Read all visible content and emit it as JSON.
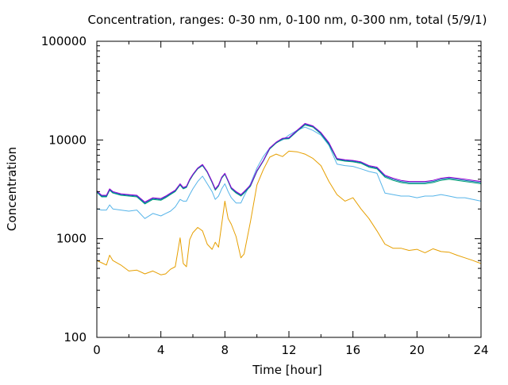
{
  "chart_data": {
    "type": "line",
    "title": "Concentration, ranges: 0-30 nm, 0-100 nm, 0-300 nm, total (5/9/1)",
    "xlabel": "Time [hour]",
    "ylabel": "Concentration",
    "xlim": [
      0,
      24
    ],
    "ylim": [
      100,
      100000
    ],
    "yscale": "log",
    "grid": false,
    "legend": "none",
    "x_ticks": [
      0,
      4,
      8,
      12,
      16,
      20,
      24
    ],
    "x_tick_labels": [
      "0",
      "4",
      "8",
      "12",
      "16",
      "20",
      "24"
    ],
    "y_ticks": [
      100,
      1000,
      10000,
      100000
    ],
    "y_tick_labels": [
      "100",
      "1000",
      "10000",
      "100000"
    ],
    "series": [
      {
        "color": "#e69f00",
        "x": [
          0,
          0.3,
          0.6,
          0.8,
          1.0,
          1.5,
          2.0,
          2.5,
          3.0,
          3.5,
          4.0,
          4.3,
          4.6,
          4.9,
          5.2,
          5.4,
          5.6,
          5.8,
          6.0,
          6.3,
          6.6,
          6.9,
          7.2,
          7.4,
          7.6,
          7.8,
          8.0,
          8.2,
          8.4,
          8.7,
          9.0,
          9.2,
          9.6,
          10.0,
          10.4,
          10.8,
          11.2,
          11.6,
          12.0,
          12.5,
          13.0,
          13.5,
          14.0,
          14.5,
          15.0,
          15.5,
          16.0,
          16.5,
          17.0,
          17.5,
          18.0,
          18.5,
          19.0,
          19.5,
          20.0,
          20.5,
          21.0,
          21.5,
          22.0,
          22.5,
          23.0,
          23.5,
          24.0
        ],
        "values": [
          600,
          570,
          540,
          680,
          600,
          540,
          470,
          480,
          440,
          470,
          430,
          440,
          490,
          520,
          1020,
          560,
          520,
          980,
          1150,
          1300,
          1200,
          880,
          780,
          920,
          820,
          1400,
          2400,
          1600,
          1400,
          1050,
          640,
          700,
          1500,
          3500,
          5000,
          6700,
          7200,
          6800,
          7700,
          7600,
          7200,
          6500,
          5500,
          3800,
          2800,
          2400,
          2600,
          2000,
          1600,
          1200,
          880,
          800,
          800,
          760,
          780,
          720,
          790,
          740,
          730,
          680,
          640,
          600,
          560
        ]
      },
      {
        "color": "#56b4e9",
        "x": [
          0,
          0.3,
          0.6,
          0.8,
          1.0,
          1.5,
          2.0,
          2.5,
          3.0,
          3.5,
          4.0,
          4.3,
          4.6,
          4.9,
          5.2,
          5.4,
          5.6,
          5.8,
          6.0,
          6.3,
          6.6,
          6.9,
          7.2,
          7.4,
          7.6,
          7.8,
          8.0,
          8.2,
          8.4,
          8.7,
          9.0,
          9.2,
          9.6,
          10.0,
          10.4,
          10.8,
          11.2,
          11.6,
          12.0,
          12.5,
          13.0,
          13.5,
          14.0,
          14.5,
          15.0,
          15.5,
          16.0,
          16.5,
          17.0,
          17.5,
          18.0,
          18.5,
          19.0,
          19.5,
          20.0,
          20.5,
          21.0,
          21.5,
          22.0,
          22.5,
          23.0,
          23.5,
          24.0
        ],
        "values": [
          2000,
          1950,
          1950,
          2200,
          2000,
          1950,
          1900,
          1950,
          1600,
          1800,
          1700,
          1800,
          1900,
          2100,
          2500,
          2400,
          2400,
          2800,
          3200,
          3800,
          4300,
          3600,
          3000,
          2500,
          2700,
          3200,
          3600,
          3000,
          2600,
          2300,
          2300,
          2700,
          3600,
          5200,
          6800,
          8300,
          9400,
          10000,
          11200,
          12500,
          13500,
          12500,
          11200,
          8800,
          5700,
          5500,
          5400,
          5100,
          4800,
          4600,
          2900,
          2800,
          2700,
          2700,
          2600,
          2700,
          2700,
          2800,
          2700,
          2600,
          2600,
          2500,
          2400
        ]
      },
      {
        "color": "#009e73",
        "x": [
          0,
          0.3,
          0.6,
          0.8,
          1.0,
          1.5,
          2.0,
          2.5,
          3.0,
          3.5,
          4.0,
          4.3,
          4.6,
          4.9,
          5.2,
          5.4,
          5.6,
          5.8,
          6.0,
          6.3,
          6.6,
          6.9,
          7.2,
          7.4,
          7.6,
          7.8,
          8.0,
          8.2,
          8.4,
          8.7,
          9.0,
          9.2,
          9.6,
          10.0,
          10.4,
          10.8,
          11.2,
          11.6,
          12.0,
          12.5,
          13.0,
          13.5,
          14.0,
          14.5,
          15.0,
          15.5,
          16.0,
          16.5,
          17.0,
          17.5,
          18.0,
          18.5,
          19.0,
          19.5,
          20.0,
          20.5,
          21.0,
          21.5,
          22.0,
          22.5,
          23.0,
          23.5,
          24.0
        ],
        "values": [
          2950,
          2650,
          2650,
          3100,
          2900,
          2750,
          2700,
          2650,
          2250,
          2500,
          2450,
          2600,
          2800,
          3000,
          3500,
          3200,
          3300,
          3900,
          4400,
          5100,
          5500,
          4700,
          3700,
          3100,
          3400,
          4100,
          4500,
          3800,
          3200,
          2900,
          2700,
          2900,
          3400,
          4800,
          6100,
          8100,
          9300,
          10200,
          10300,
          12200,
          14200,
          13500,
          11500,
          9000,
          6300,
          6100,
          6000,
          5800,
          5300,
          5100,
          4200,
          3900,
          3700,
          3600,
          3600,
          3600,
          3700,
          3900,
          4000,
          3900,
          3800,
          3700,
          3600
        ]
      },
      {
        "color": "#0072b2",
        "x": [
          0,
          0.3,
          0.6,
          0.8,
          1.0,
          1.5,
          2.0,
          2.5,
          3.0,
          3.5,
          4.0,
          4.3,
          4.6,
          4.9,
          5.2,
          5.4,
          5.6,
          5.8,
          6.0,
          6.3,
          6.6,
          6.9,
          7.2,
          7.4,
          7.6,
          7.8,
          8.0,
          8.2,
          8.4,
          8.7,
          9.0,
          9.2,
          9.6,
          10.0,
          10.4,
          10.8,
          11.2,
          11.6,
          12.0,
          12.5,
          13.0,
          13.5,
          14.0,
          14.5,
          15.0,
          15.5,
          16.0,
          16.5,
          17.0,
          17.5,
          18.0,
          18.5,
          19.0,
          19.5,
          20.0,
          20.5,
          21.0,
          21.5,
          22.0,
          22.5,
          23.0,
          23.5,
          24.0
        ],
        "values": [
          3000,
          2700,
          2700,
          3150,
          2950,
          2800,
          2750,
          2700,
          2300,
          2550,
          2500,
          2650,
          2850,
          3050,
          3550,
          3250,
          3350,
          3950,
          4450,
          5150,
          5550,
          4750,
          3750,
          3150,
          3450,
          4150,
          4550,
          3850,
          3250,
          2950,
          2750,
          2950,
          3450,
          4850,
          6150,
          8200,
          9400,
          10300,
          10400,
          12300,
          14400,
          13700,
          11700,
          9200,
          6400,
          6200,
          6100,
          5900,
          5400,
          5200,
          4300,
          4000,
          3800,
          3700,
          3700,
          3700,
          3800,
          4000,
          4100,
          4000,
          3900,
          3800,
          3700
        ]
      },
      {
        "color": "#9400d3",
        "x": [
          0,
          0.3,
          0.6,
          0.8,
          1.0,
          1.5,
          2.0,
          2.5,
          3.0,
          3.5,
          4.0,
          4.3,
          4.6,
          4.9,
          5.2,
          5.4,
          5.6,
          5.8,
          6.0,
          6.3,
          6.6,
          6.9,
          7.2,
          7.4,
          7.6,
          7.8,
          8.0,
          8.2,
          8.4,
          8.7,
          9.0,
          9.2,
          9.6,
          10.0,
          10.4,
          10.8,
          11.2,
          11.6,
          12.0,
          12.5,
          13.0,
          13.5,
          14.0,
          14.5,
          15.0,
          15.5,
          16.0,
          16.5,
          17.0,
          17.5,
          18.0,
          18.5,
          19.0,
          19.5,
          20.0,
          20.5,
          21.0,
          21.5,
          22.0,
          22.5,
          23.0,
          23.5,
          24.0
        ],
        "values": [
          3050,
          2750,
          2750,
          3200,
          3000,
          2850,
          2800,
          2750,
          2350,
          2600,
          2550,
          2700,
          2900,
          3100,
          3600,
          3300,
          3400,
          4000,
          4500,
          5200,
          5650,
          4800,
          3800,
          3200,
          3500,
          4200,
          4600,
          3900,
          3300,
          3000,
          2800,
          3000,
          3500,
          4900,
          6200,
          8300,
          9500,
          10400,
          10600,
          12500,
          14700,
          13900,
          11900,
          9400,
          6500,
          6300,
          6200,
          6000,
          5500,
          5300,
          4400,
          4100,
          3900,
          3800,
          3800,
          3800,
          3900,
          4100,
          4200,
          4100,
          4000,
          3900,
          3800
        ]
      }
    ]
  }
}
